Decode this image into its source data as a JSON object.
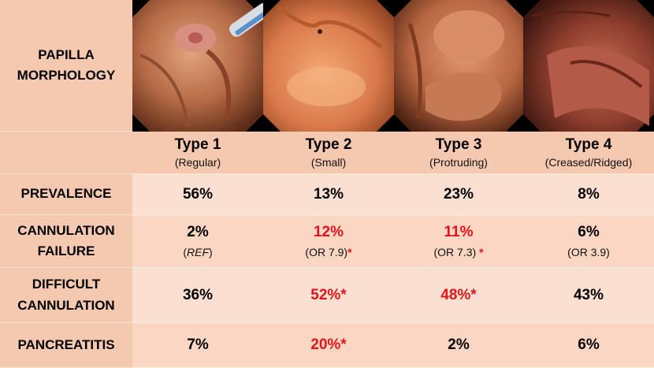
{
  "row_labels": {
    "morphology": [
      "PAPILLA",
      "MORPHOLOGY"
    ],
    "prevalence": "PREVALENCE",
    "cannulation_failure": [
      "CANNULATION",
      "FAILURE"
    ],
    "difficult_cannulation": [
      "DIFFICULT",
      "CANNULATION"
    ],
    "pancreatitis": "PANCREATITIS"
  },
  "types": [
    {
      "title": "Type 1",
      "subtitle": "(Regular)",
      "prevalence": "56%",
      "cannulation_failure": "2%",
      "cannulation_failure_note": "REF",
      "cf_sig": false,
      "difficult_cannulation": "36%",
      "dc_sig": false,
      "pancreatitis": "7%",
      "p_sig": false,
      "image": "papilla-type-1-endoscopy-photo"
    },
    {
      "title": "Type 2",
      "subtitle": "(Small)",
      "prevalence": "13%",
      "cannulation_failure": "12%",
      "cannulation_failure_note": "(OR 7.9)",
      "cannulation_failure_mark": "*",
      "cf_sig": true,
      "difficult_cannulation": "52%*",
      "dc_sig": true,
      "pancreatitis": "20%*",
      "p_sig": true,
      "image": "papilla-type-2-endoscopy-photo"
    },
    {
      "title": "Type 3",
      "subtitle": "(Protruding)",
      "prevalence": "23%",
      "cannulation_failure": "11%",
      "cannulation_failure_note": "(OR 7.3)",
      "cannulation_failure_mark": "*",
      "cf_sig": true,
      "difficult_cannulation": "48%*",
      "dc_sig": true,
      "pancreatitis": "2%",
      "p_sig": false,
      "image": "papilla-type-3-endoscopy-photo"
    },
    {
      "title": "Type 4",
      "subtitle": "(Creased/Ridged)",
      "prevalence": "8%",
      "cannulation_failure": "6%",
      "cannulation_failure_note": "(OR 3.9)",
      "cf_sig": false,
      "difficult_cannulation": "43%",
      "dc_sig": false,
      "pancreatitis": "6%",
      "p_sig": false,
      "image": "papilla-type-4-endoscopy-photo"
    }
  ],
  "colors": {
    "significant": "#e0141b",
    "label_bg": "#f5c9b0",
    "row_light": "#fbe0d2"
  }
}
